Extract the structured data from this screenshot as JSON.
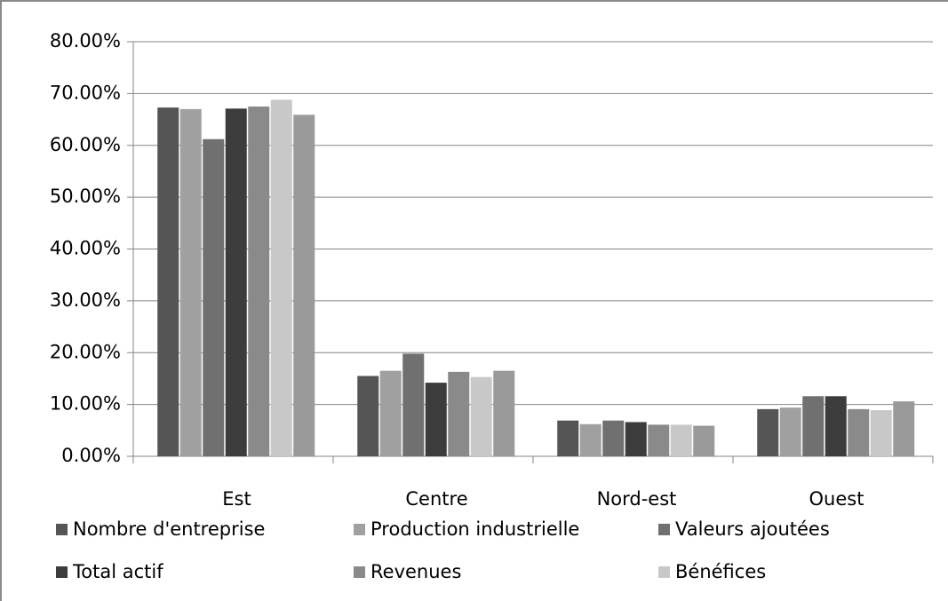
{
  "chart_data": {
    "type": "bar",
    "categories": [
      "Est",
      "Centre",
      "Nord-est",
      "Ouest"
    ],
    "series": [
      {
        "name": "Nombre d'entreprise",
        "color": "#555555",
        "values": [
          67.3,
          15.5,
          6.9,
          9.1
        ]
      },
      {
        "name": "Production industrielle",
        "color": "#a0a0a0",
        "values": [
          67.0,
          16.5,
          6.2,
          9.4
        ]
      },
      {
        "name": "Valeurs ajoutées",
        "color": "#707070",
        "values": [
          61.2,
          19.8,
          6.9,
          11.6
        ]
      },
      {
        "name": "Total actif",
        "color": "#3c3c3c",
        "values": [
          67.1,
          14.2,
          6.6,
          11.6
        ]
      },
      {
        "name": "Revenues",
        "color": "#8a8a8a",
        "values": [
          67.5,
          16.3,
          6.1,
          9.1
        ]
      },
      {
        "name": "Bénéfices",
        "color": "#c8c8c8",
        "values": [
          68.8,
          15.3,
          6.1,
          8.9
        ]
      },
      {
        "color": "#9a9a9a",
        "values": [
          65.9,
          16.5,
          5.9,
          10.6
        ]
      }
    ],
    "ylim": [
      0,
      80
    ],
    "yticks": [
      {
        "value": 0,
        "label": "0.00%"
      },
      {
        "value": 10,
        "label": "10.00%"
      },
      {
        "value": 20,
        "label": "20.00%"
      },
      {
        "value": 30,
        "label": "30.00%"
      },
      {
        "value": 40,
        "label": "40.00%"
      },
      {
        "value": 50,
        "label": "50.00%"
      },
      {
        "value": 60,
        "label": "60.00%"
      },
      {
        "value": 70,
        "label": "70.00%"
      },
      {
        "value": 80,
        "label": "80.00%"
      }
    ],
    "grid": true
  }
}
